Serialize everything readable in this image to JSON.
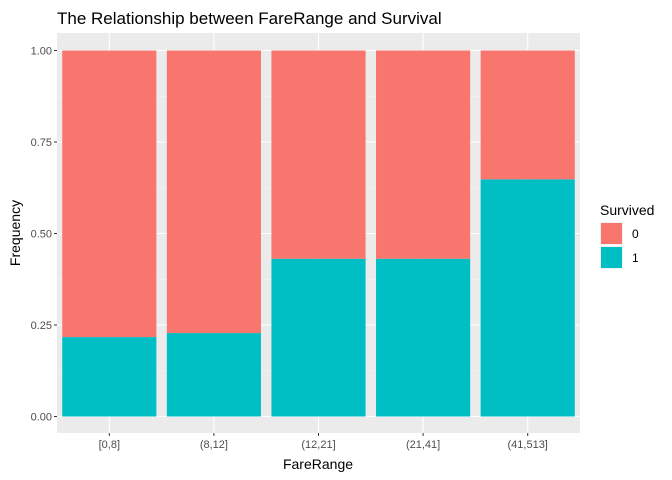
{
  "chart_data": {
    "type": "bar",
    "stacked": true,
    "title": "The Relationship between FareRange and Survival",
    "xlabel": "FareRange",
    "ylabel": "Frequency",
    "categories": [
      "[0,8]",
      "(8,12]",
      "(12,21]",
      "(21,41]",
      "(41,513]"
    ],
    "series": [
      {
        "name": "0",
        "values": [
          0.783,
          0.772,
          0.569,
          0.569,
          0.352
        ],
        "color": "#F8766D"
      },
      {
        "name": "1",
        "values": [
          0.217,
          0.228,
          0.431,
          0.431,
          0.648
        ],
        "color": "#00BFC4"
      }
    ],
    "ylim": [
      0,
      1
    ],
    "yticks": [
      0,
      0.25,
      0.5,
      0.75,
      1
    ],
    "ytick_labels": [
      "0.00",
      "0.25",
      "0.50",
      "0.75",
      "1.00"
    ],
    "grid": true,
    "legend": {
      "title": "Survived",
      "position": "right"
    },
    "panel_background": "#EBEBEB"
  }
}
